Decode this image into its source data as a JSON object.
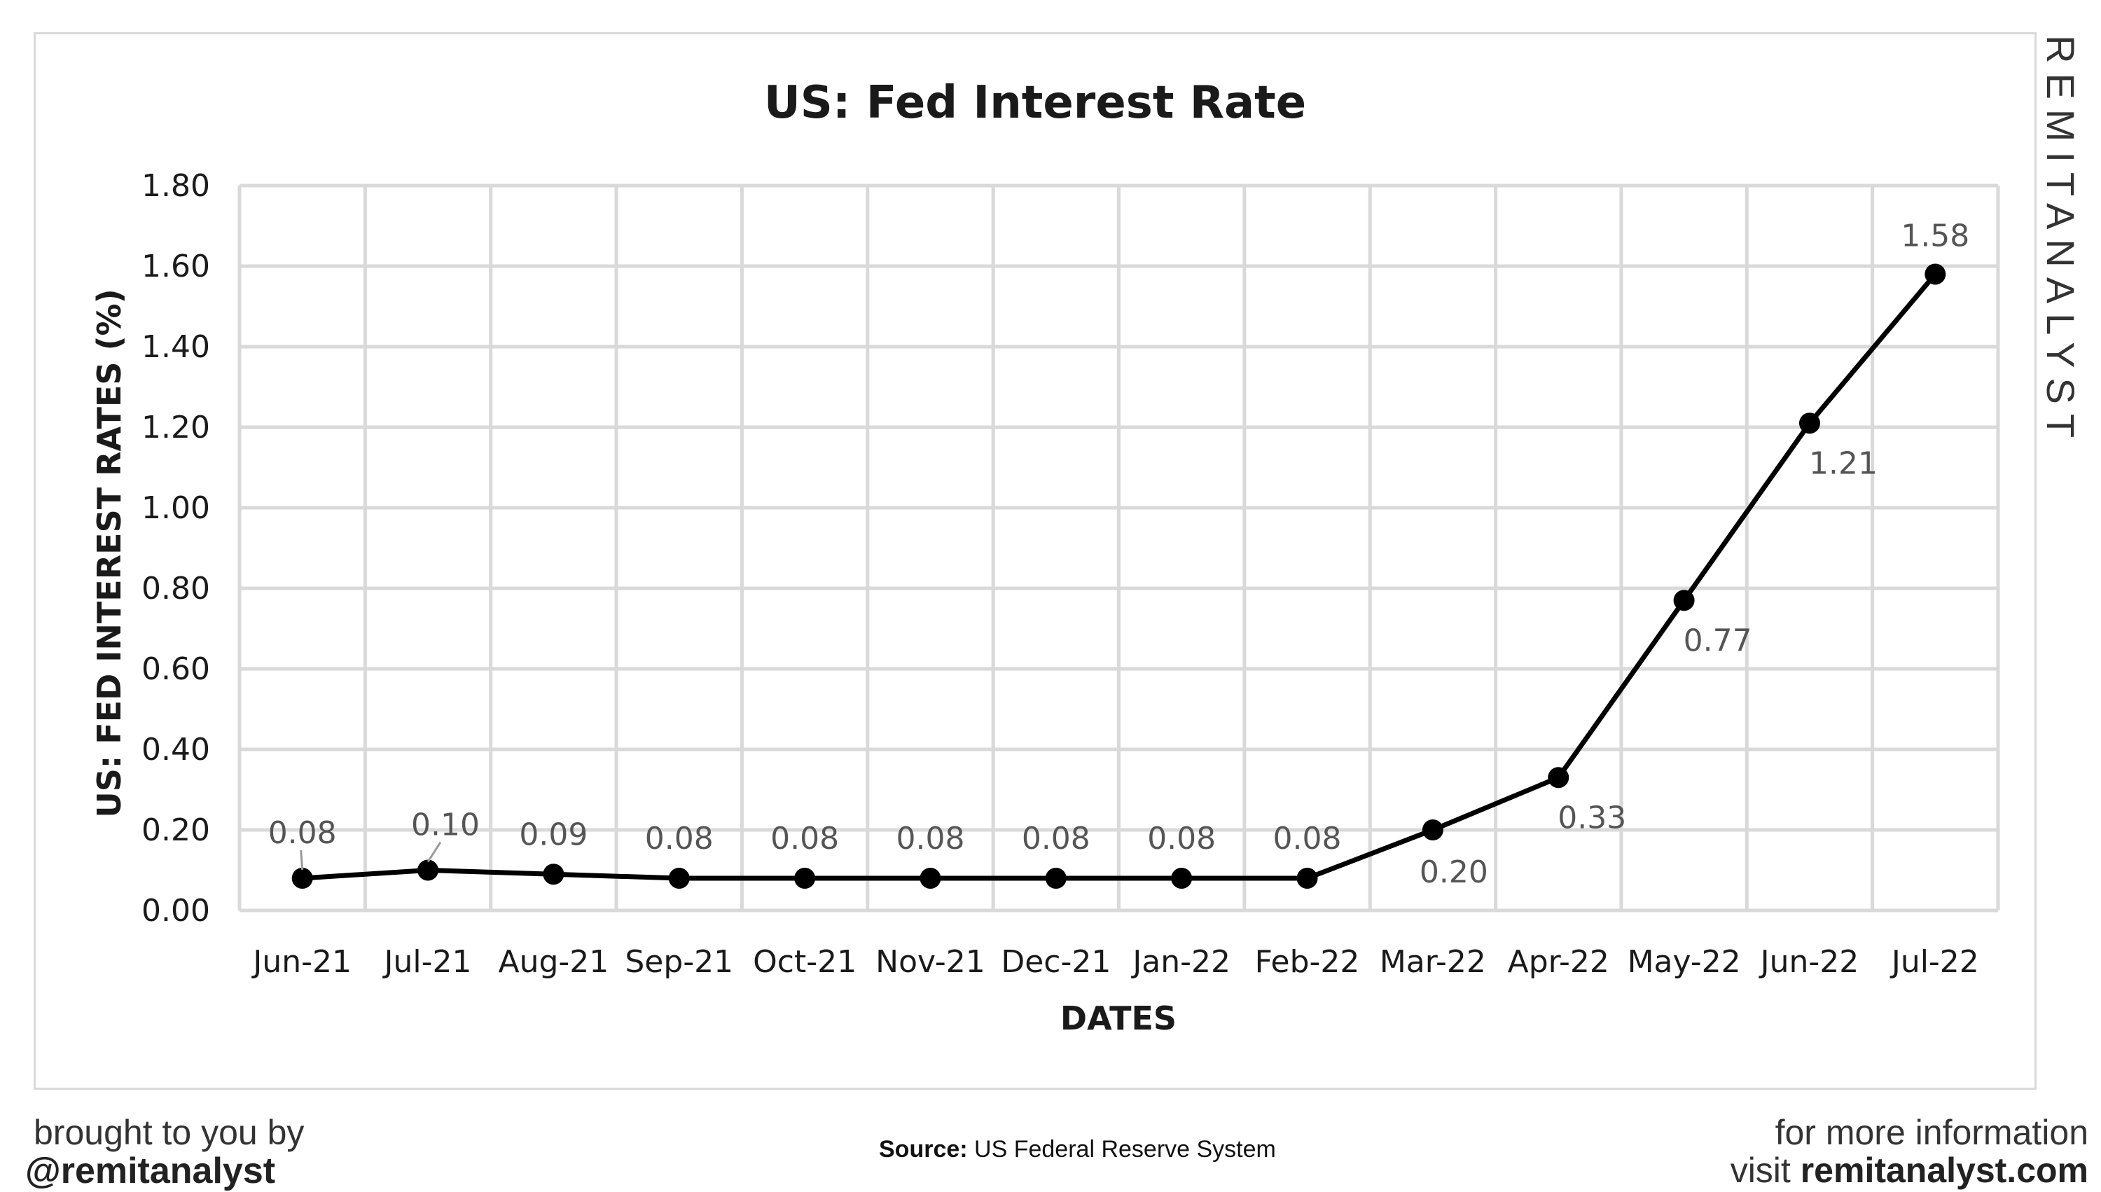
{
  "chart_data": {
    "type": "line",
    "title": "US: Fed Interest Rate",
    "xlabel": "DATES",
    "ylabel": "US: FED INTEREST RATES (%)",
    "ylim": [
      0,
      1.8
    ],
    "y_ticks": [
      "0.00",
      "0.20",
      "0.40",
      "0.60",
      "0.80",
      "1.00",
      "1.20",
      "1.40",
      "1.60",
      "1.80"
    ],
    "grid": true,
    "categories": [
      "Jun-21",
      "Jul-21",
      "Aug-21",
      "Sep-21",
      "Oct-21",
      "Nov-21",
      "Dec-21",
      "Jan-22",
      "Feb-22",
      "Mar-22",
      "Apr-22",
      "May-22",
      "Jun-22",
      "Jul-22"
    ],
    "series": [
      {
        "values": [
          0.08,
          0.1,
          0.09,
          0.08,
          0.08,
          0.08,
          0.08,
          0.08,
          0.08,
          0.2,
          0.33,
          0.77,
          1.21,
          1.58
        ],
        "data_labels": [
          "0.08",
          "0.10",
          "0.09",
          "0.08",
          "0.08",
          "0.08",
          "0.08",
          "0.08",
          "0.08",
          "0.20",
          "0.33",
          "0.77",
          "1.21",
          "1.58"
        ],
        "color": "#000000"
      }
    ]
  },
  "watermark": "REMITANALYST",
  "footer": {
    "left_line1": "brought to you by",
    "left_line2": "@remitanalyst",
    "source_label": "Source:",
    "source_text": "US Federal Reserve System",
    "right_line1": "for more information",
    "right_line2_prefix": "visit",
    "right_line2_site": "remitanalyst.com"
  }
}
